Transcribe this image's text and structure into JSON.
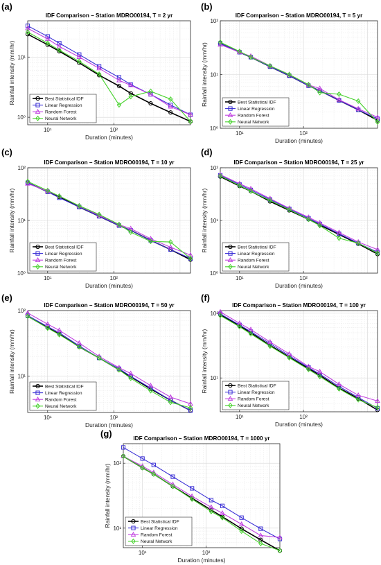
{
  "figure": {
    "x_label": "Duration (minutes)",
    "y_label": "Rainfall intensity (mm/hr)"
  },
  "legend": {
    "entries": [
      "Best Statistical IDF",
      "Linear Regression",
      "Random Forest",
      "Neural Network"
    ]
  },
  "colors": {
    "Best Statistical IDF": "#000000",
    "Linear Regression": "#3a2fd6",
    "Random Forest": "#c040e0",
    "Neural Network": "#44d12a"
  },
  "markers": {
    "Best Statistical IDF": "circle",
    "Linear Regression": "square",
    "Random Forest": "triangle",
    "Neural Network": "diamond"
  },
  "chart_data": [
    {
      "panel": "(a)",
      "type": "line",
      "title": "IDF Comparison – Station MDRO00194, T = 2 yr",
      "xlabel": "Duration (minutes)",
      "ylabel": "Rainfall intensity (mm/hr)",
      "x_scale": "log",
      "y_scale": "log",
      "xlim": [
        5,
        1440
      ],
      "ylim": [
        0.75,
        40
      ],
      "x_ticks": [
        10,
        100
      ],
      "x_tick_labels": [
        "10¹",
        "10²"
      ],
      "y_ticks": [
        1,
        10
      ],
      "y_tick_labels": [
        "10⁰",
        "10¹"
      ],
      "grid": true,
      "legend_position": "bottom-left",
      "x": [
        5,
        10,
        15,
        30,
        60,
        120,
        180,
        360,
        720,
        1440
      ],
      "series": [
        {
          "name": "Best Statistical IDF",
          "values": [
            24,
            16,
            12.5,
            8,
            5,
            3.3,
            2.5,
            1.7,
            1.2,
            0.85
          ]
        },
        {
          "name": "Linear Regression",
          "values": [
            33,
            22,
            17,
            11,
            7,
            4.6,
            3.5,
            2.4,
            1.6,
            1.1
          ]
        },
        {
          "name": "Random Forest",
          "values": [
            30,
            20,
            15,
            10,
            6.5,
            4.1,
            3.4,
            2.4,
            1.5,
            1.1
          ]
        },
        {
          "name": "Neural Network",
          "values": [
            26,
            17,
            13,
            8.5,
            5.2,
            1.6,
            2.2,
            2.7,
            2.0,
            0.85
          ]
        }
      ]
    },
    {
      "panel": "(b)",
      "type": "line",
      "title": "IDF Comparison – Station MDRO00194, T = 5 yr",
      "xlabel": "Duration (minutes)",
      "ylabel": "Rainfall intensity (mm/hr)",
      "x_scale": "log",
      "y_scale": "log",
      "xlim": [
        5,
        1440
      ],
      "ylim": [
        1,
        100
      ],
      "x_ticks": [
        10,
        100
      ],
      "x_tick_labels": [
        "10¹",
        "10²"
      ],
      "y_ticks": [
        1,
        10,
        100
      ],
      "y_tick_labels": [
        "10⁰",
        "10¹",
        "10²"
      ],
      "grid": true,
      "legend_position": "bottom-left",
      "x": [
        5,
        10,
        15,
        30,
        60,
        120,
        180,
        360,
        720,
        1440
      ],
      "series": [
        {
          "name": "Best Statistical IDF",
          "values": [
            38,
            26,
            21,
            14,
            9.5,
            6.2,
            5.0,
            3.3,
            2.2,
            1.4
          ]
        },
        {
          "name": "Linear Regression",
          "values": [
            38,
            26,
            21,
            14,
            9.5,
            6.2,
            5.0,
            3.3,
            2.2,
            1.5
          ]
        },
        {
          "name": "Random Forest",
          "values": [
            36,
            26,
            22,
            14.5,
            10,
            6.4,
            5.5,
            3.4,
            2.3,
            1.6
          ]
        },
        {
          "name": "Neural Network",
          "values": [
            40,
            27,
            21,
            14.5,
            10,
            6.5,
            4.6,
            4.3,
            3.2,
            1.3
          ]
        }
      ]
    },
    {
      "panel": "(c)",
      "type": "line",
      "title": "IDF Comparison – Station MDRO00194, T = 10 yr",
      "xlabel": "Duration (minutes)",
      "ylabel": "Rainfall intensity (mm/hr)",
      "x_scale": "log",
      "y_scale": "log",
      "xlim": [
        5,
        1440
      ],
      "ylim": [
        1,
        100
      ],
      "x_ticks": [
        10,
        100
      ],
      "x_tick_labels": [
        "10¹",
        "10²"
      ],
      "y_ticks": [
        1,
        10,
        100
      ],
      "y_tick_labels": [
        "10⁰",
        "10¹",
        "10²"
      ],
      "grid": true,
      "legend_position": "bottom-left",
      "x": [
        5,
        10,
        15,
        30,
        60,
        120,
        180,
        360,
        720,
        1440
      ],
      "series": [
        {
          "name": "Best Statistical IDF",
          "values": [
            52,
            35,
            28,
            18,
            12,
            8,
            6.5,
            4.2,
            2.8,
            1.8
          ]
        },
        {
          "name": "Linear Regression",
          "values": [
            52,
            35,
            27,
            18,
            12,
            8,
            6.5,
            4.2,
            2.8,
            1.9
          ]
        },
        {
          "name": "Random Forest",
          "values": [
            50,
            36,
            29,
            19,
            12.5,
            8.3,
            7,
            4.5,
            3.1,
            2.2
          ]
        },
        {
          "name": "Neural Network",
          "values": [
            55,
            37,
            29,
            19,
            13,
            8.4,
            6,
            4.0,
            3.9,
            1.9
          ]
        }
      ]
    },
    {
      "panel": "(d)",
      "type": "line",
      "title": "IDF Comparison – Station MDRO00194, T = 25 yr",
      "xlabel": "Duration (minutes)",
      "ylabel": "Rainfall intensity (mm/hr)",
      "x_scale": "log",
      "y_scale": "log",
      "xlim": [
        5,
        1440
      ],
      "ylim": [
        1,
        100
      ],
      "x_ticks": [
        10,
        100
      ],
      "x_tick_labels": [
        "10¹",
        "10²"
      ],
      "y_ticks": [
        1,
        10,
        100
      ],
      "y_tick_labels": [
        "10⁰",
        "10¹",
        "10²"
      ],
      "grid": true,
      "legend_position": "bottom-left",
      "x": [
        5,
        10,
        15,
        30,
        60,
        120,
        180,
        360,
        720,
        1440
      ],
      "series": [
        {
          "name": "Best Statistical IDF",
          "values": [
            68,
            45,
            36,
            23,
            15.5,
            10.5,
            8.2,
            5.4,
            3.6,
            2.3
          ]
        },
        {
          "name": "Linear Regression",
          "values": [
            72,
            48,
            38,
            25,
            16.5,
            11,
            8.6,
            5.6,
            3.7,
            2.5
          ]
        },
        {
          "name": "Random Forest",
          "values": [
            74,
            50,
            40,
            26,
            17,
            11.5,
            9,
            5.9,
            3.9,
            2.8
          ]
        },
        {
          "name": "Neural Network",
          "values": [
            70,
            46,
            36,
            24,
            16,
            10.5,
            8,
            4.6,
            3.7,
            2.4
          ]
        }
      ]
    },
    {
      "panel": "(e)",
      "type": "line",
      "title": "IDF Comparison – Station MDRO00194, T = 50 yr",
      "xlabel": "Duration (minutes)",
      "ylabel": "Rainfall intensity (mm/hr)",
      "x_scale": "log",
      "y_scale": "log",
      "xlim": [
        5,
        1440
      ],
      "ylim": [
        2.8,
        100
      ],
      "x_ticks": [
        10,
        100
      ],
      "x_tick_labels": [
        "10¹",
        "10²"
      ],
      "y_ticks": [
        10,
        100
      ],
      "y_tick_labels": [
        "10¹",
        "10²"
      ],
      "grid": true,
      "legend_position": "bottom-left",
      "x": [
        5,
        10,
        15,
        30,
        60,
        120,
        180,
        360,
        720,
        1440
      ],
      "series": [
        {
          "name": "Best Statistical IDF",
          "values": [
            82,
            55,
            44,
            28,
            19,
            12.5,
            9.8,
            6.4,
            4.3,
            3.0
          ]
        },
        {
          "name": "Linear Regression",
          "values": [
            84,
            57,
            46,
            29,
            19,
            13,
            10,
            6.6,
            4.3,
            3.0
          ]
        },
        {
          "name": "Random Forest",
          "values": [
            92,
            62,
            50,
            32,
            20,
            13.5,
            11,
            7.2,
            4.8,
            3.8
          ]
        },
        {
          "name": "Neural Network",
          "values": [
            82,
            54,
            43,
            28,
            19,
            12.5,
            9.3,
            6.0,
            4.0,
            3.3
          ]
        }
      ]
    },
    {
      "panel": "(f)",
      "type": "line",
      "title": "IDF Comparison – Station MDRO00194, T = 100 yr",
      "xlabel": "Duration (minutes)",
      "ylabel": "Rainfall intensity (mm/hr)",
      "x_scale": "log",
      "y_scale": "log",
      "xlim": [
        5,
        1440
      ],
      "ylim": [
        3,
        110
      ],
      "x_ticks": [
        10,
        100
      ],
      "x_tick_labels": [
        "10¹",
        "10²"
      ],
      "y_ticks": [
        10,
        100
      ],
      "y_tick_labels": [
        "10¹",
        "10²"
      ],
      "grid": true,
      "legend_position": "bottom-left",
      "x": [
        5,
        10,
        15,
        30,
        60,
        120,
        180,
        360,
        720,
        1440
      ],
      "series": [
        {
          "name": "Best Statistical IDF",
          "values": [
            95,
            64,
            50,
            32,
            21,
            14,
            11,
            7,
            4.8,
            3.2
          ]
        },
        {
          "name": "Linear Regression",
          "values": [
            98,
            66,
            52,
            34,
            22,
            14.5,
            11.5,
            7.4,
            5,
            3.4
          ]
        },
        {
          "name": "Random Forest",
          "values": [
            105,
            70,
            56,
            36,
            23.5,
            15,
            12.5,
            8,
            5.4,
            4.4
          ]
        },
        {
          "name": "Neural Network",
          "values": [
            92,
            62,
            48,
            31,
            20.5,
            13.5,
            10.5,
            6.8,
            4.6,
            3.5
          ]
        }
      ]
    },
    {
      "panel": "(g)",
      "type": "line",
      "title": "IDF Comparison – Station MDRO00194, T = 1000 yr",
      "xlabel": "Duration (minutes)",
      "ylabel": "Rainfall intensity (mm/hr)",
      "x_scale": "log",
      "y_scale": "log",
      "xlim": [
        5,
        1440
      ],
      "ylim": [
        5,
        200
      ],
      "x_ticks": [
        10,
        100
      ],
      "x_tick_labels": [
        "10¹",
        "10²"
      ],
      "y_ticks": [
        10,
        100
      ],
      "y_tick_labels": [
        "10¹",
        "10²"
      ],
      "grid": true,
      "legend_position": "bottom-left",
      "x": [
        5,
        10,
        15,
        30,
        60,
        120,
        180,
        360,
        720,
        1440
      ],
      "series": [
        {
          "name": "Best Statistical IDF",
          "values": [
            128,
            85,
            68,
            44,
            29,
            19,
            15,
            9.8,
            6.6,
            4.5
          ]
        },
        {
          "name": "Linear Regression",
          "values": [
            175,
            118,
            94,
            62,
            41,
            27,
            22,
            14.5,
            9.8,
            6.8
          ]
        },
        {
          "name": "Random Forest",
          "values": [
            128,
            90,
            72,
            47,
            31,
            21,
            17,
            11.5,
            7.7,
            7.2
          ]
        },
        {
          "name": "Neural Network",
          "values": [
            128,
            85,
            68,
            44,
            28,
            18,
            14.5,
            9,
            5.8,
            4.5
          ]
        }
      ]
    }
  ]
}
